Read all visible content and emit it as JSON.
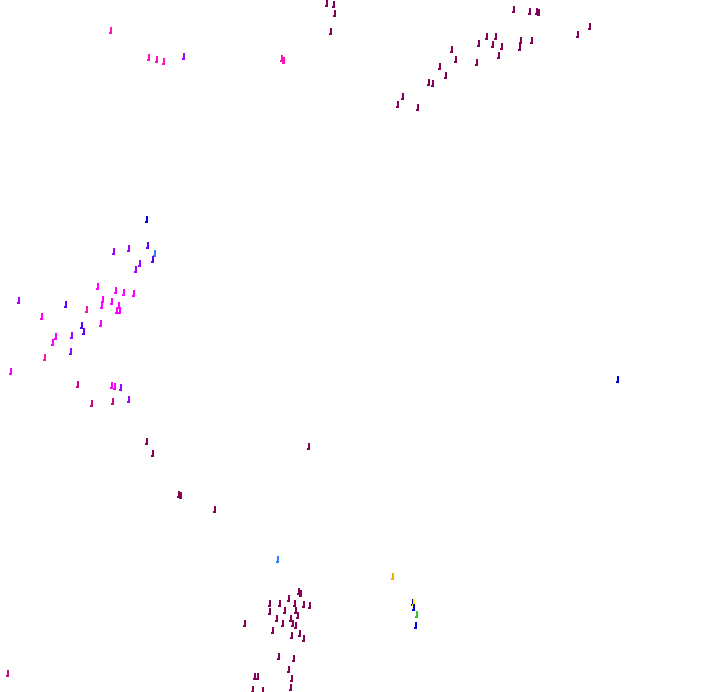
{
  "background": "#ffffff",
  "palette": {
    "maroon": "#850057",
    "magenta": "#ff00ff",
    "pink": "#ff14b4",
    "violet": "#a000ff",
    "indigo": "#5a00ff",
    "blue": "#0000e6",
    "skyblue": "#2d7dff",
    "crimson": "#c80a82",
    "orange": "#ffaa00",
    "yellow": "#ffff00",
    "green": "#32c81e"
  }
}
